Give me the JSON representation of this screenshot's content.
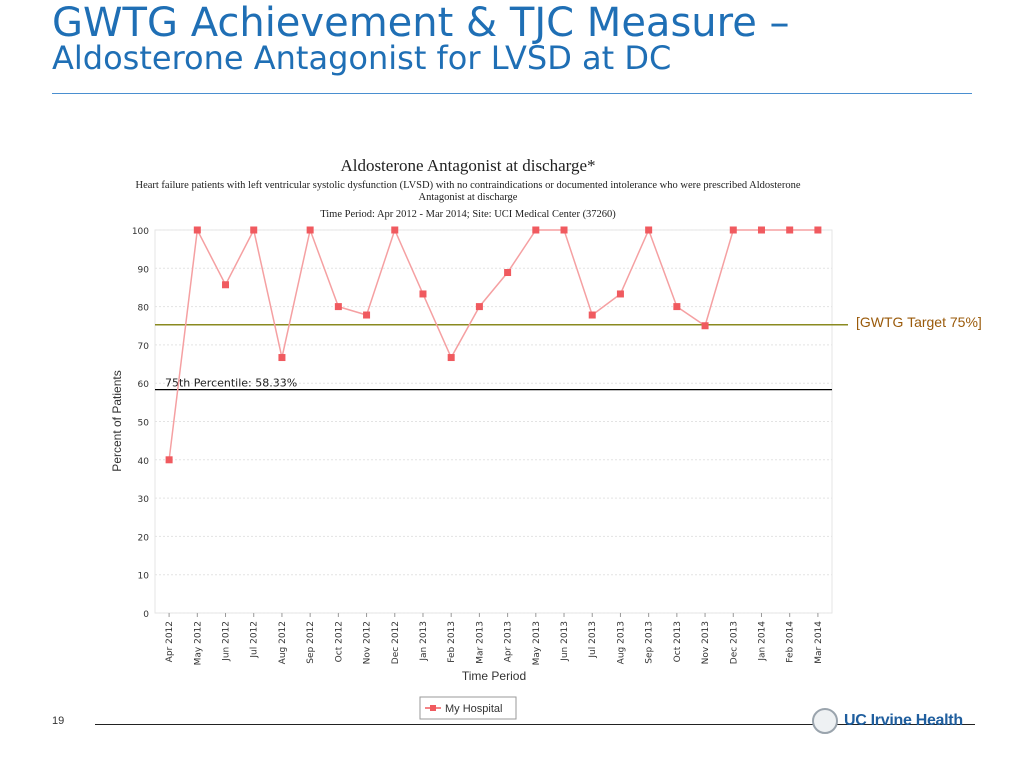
{
  "slide": {
    "title_line1": "GWTG Achievement & TJC Measure –",
    "title_line2": "Aldosterone Antagonist for LVSD at DC",
    "page_number": "19",
    "logo_text": "UC Irvine Health"
  },
  "chart_data": {
    "type": "line",
    "title": "Aldosterone Antagonist at discharge*",
    "subtitle_line1": "Heart failure patients with left ventricular systolic dysfunction (LVSD) with no contraindications or documented intolerance who were prescribed Aldosterone",
    "subtitle_line2": "Antagonist at discharge",
    "subtitle_line3": "Time Period: Apr 2012 - Mar 2014; Site: UCI Medical Center (37260)",
    "xlabel": "Time Period",
    "ylabel": "Percent of Patients",
    "ylim": [
      0,
      100
    ],
    "yticks": [
      0,
      10,
      20,
      30,
      40,
      50,
      60,
      70,
      80,
      90,
      100
    ],
    "grid": true,
    "legend_position": "bottom",
    "categories": [
      "Apr 2012",
      "May 2012",
      "Jun 2012",
      "Jul 2012",
      "Aug 2012",
      "Sep 2012",
      "Oct 2012",
      "Nov 2012",
      "Dec 2012",
      "Jan 2013",
      "Feb 2013",
      "Mar 2013",
      "Apr 2013",
      "May 2013",
      "Jun 2013",
      "Jul 2013",
      "Aug 2013",
      "Sep 2013",
      "Oct 2013",
      "Nov 2013",
      "Dec 2013",
      "Jan 2014",
      "Feb 2014",
      "Mar 2014"
    ],
    "series": [
      {
        "name": "My Hospital",
        "color": "#f05a5f",
        "values": [
          40,
          100,
          85.7,
          100,
          66.7,
          100,
          80,
          77.8,
          100,
          83.3,
          66.7,
          80,
          88.9,
          100,
          100,
          77.8,
          83.3,
          100,
          80,
          75,
          100,
          100,
          100,
          100
        ]
      }
    ],
    "reference_lines": [
      {
        "label": "75th Percentile: 58.33%",
        "value": 58.33,
        "color": "#000000"
      },
      {
        "label": "[GWTG Target 75%]",
        "value": 75,
        "color": "#8a8a20"
      }
    ]
  }
}
